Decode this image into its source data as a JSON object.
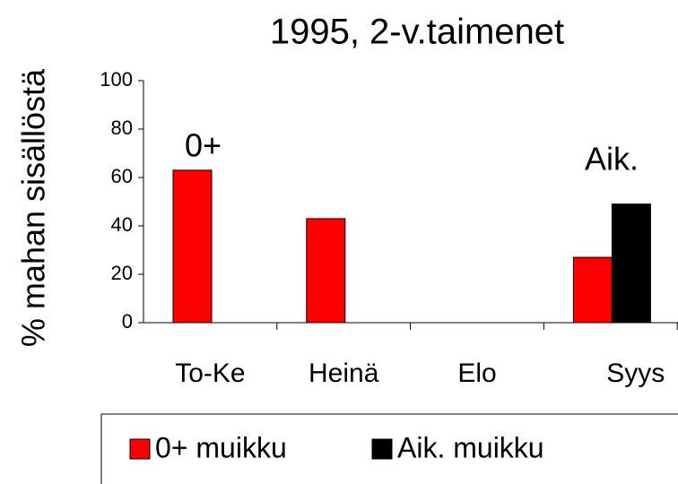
{
  "chart_data": {
    "type": "bar",
    "title": "1995, 2-v.taimenet",
    "y_label": "% mahan sisällöstä",
    "categories": [
      "To-Ke",
      "Heinä",
      "Elo",
      "Syys"
    ],
    "series": [
      {
        "name": "0+ muikku",
        "color": "#ff0000",
        "values": [
          63,
          43,
          0,
          27
        ]
      },
      {
        "name": "Aik. muikku",
        "color": "#000000",
        "values": [
          0,
          0,
          0,
          49
        ]
      }
    ],
    "annotations": [
      "0+",
      "Aik."
    ],
    "ylim": [
      0,
      100
    ],
    "yticks": [
      0,
      20,
      40,
      60,
      80,
      100
    ],
    "grid": false,
    "legend": "bottom"
  }
}
